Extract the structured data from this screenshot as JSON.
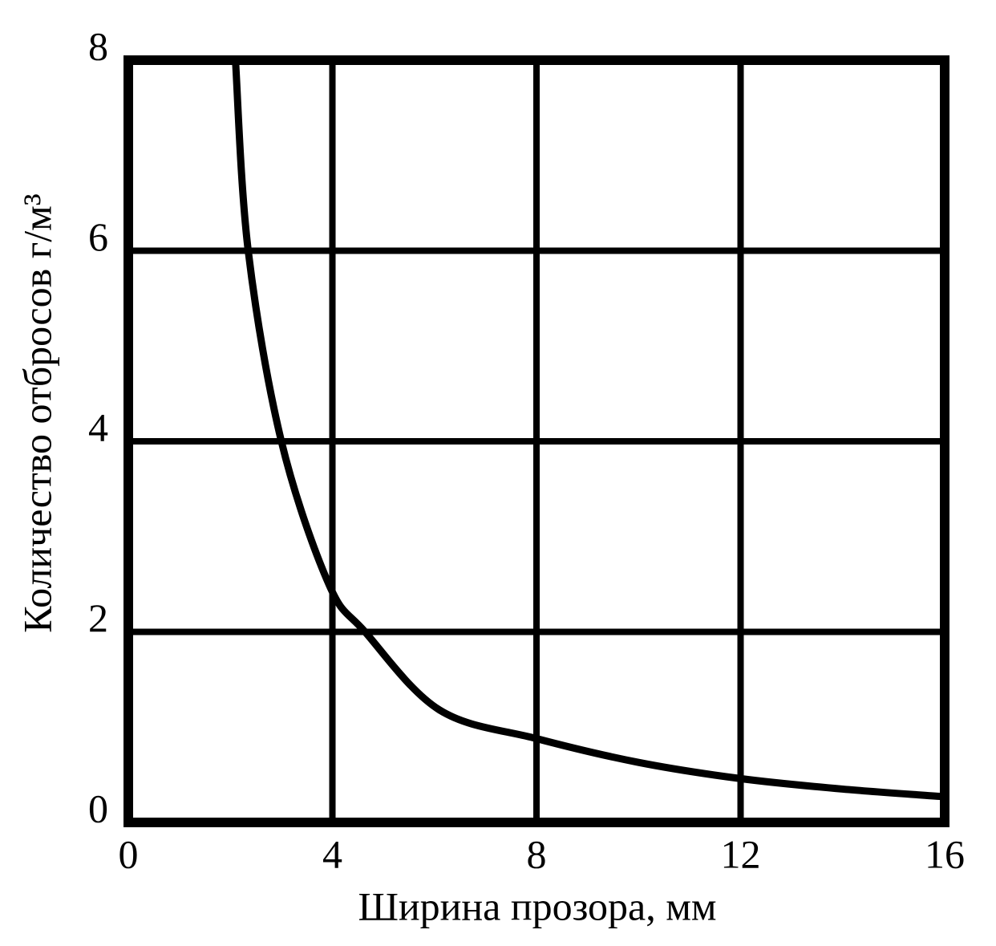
{
  "chart_data": {
    "type": "line",
    "x_label": "Ширина прозора, мм",
    "y_label": "Количество отбросов г/м³",
    "x": [
      2.1,
      2.35,
      3.0,
      3.93,
      4.64,
      6.1,
      8,
      10,
      12,
      14,
      16
    ],
    "values": [
      8,
      6,
      4,
      2.5,
      2,
      1.18,
      0.88,
      0.63,
      0.46,
      0.35,
      0.27
    ],
    "color": "#000000",
    "xlim": [
      0,
      16
    ],
    "xticks": [
      0,
      4,
      8,
      12,
      16
    ],
    "ylim": [
      0,
      8
    ],
    "yticks": [
      0,
      2,
      4,
      6,
      8
    ],
    "grid": true
  }
}
